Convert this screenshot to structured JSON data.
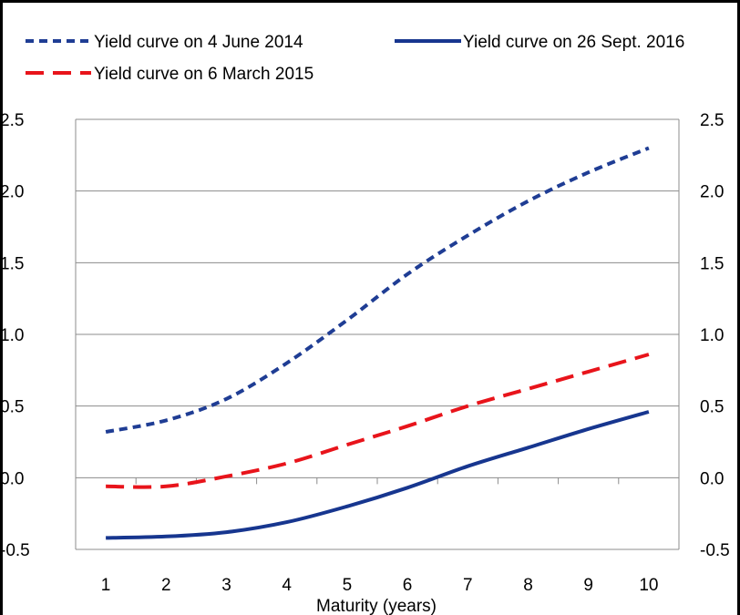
{
  "chart_data": {
    "type": "line",
    "title": "",
    "xlabel": "Maturity (years)",
    "ylabel": "",
    "x": [
      1,
      2,
      3,
      4,
      5,
      6,
      7,
      8,
      9,
      10
    ],
    "xlim": [
      0.5,
      10.5
    ],
    "ylim": [
      -0.5,
      2.5
    ],
    "y_ticks": [
      -0.5,
      0.0,
      0.5,
      1.0,
      1.5,
      2.0,
      2.5
    ],
    "y_tick_labels": [
      "-0.5",
      "0.0",
      "0.5",
      "1.0",
      "1.5",
      "2.0",
      "2.5"
    ],
    "x_tick_labels": [
      "1",
      "2",
      "3",
      "4",
      "5",
      "6",
      "7",
      "8",
      "9",
      "10"
    ],
    "grid": "horizontal",
    "legend_placement": "top",
    "series": [
      {
        "name": "Yield curve on 4 June 2014",
        "values": [
          0.32,
          0.4,
          0.55,
          0.8,
          1.1,
          1.42,
          1.69,
          1.93,
          2.13,
          2.3
        ],
        "color": "#1f3d94",
        "style": "short-dash"
      },
      {
        "name": "Yield curve on 26 Sept. 2016",
        "values": [
          -0.42,
          -0.41,
          -0.38,
          -0.31,
          -0.2,
          -0.07,
          0.08,
          0.21,
          0.34,
          0.46
        ],
        "color": "#17368f",
        "style": "solid"
      },
      {
        "name": "Yield curve on 6 March 2015",
        "values": [
          -0.06,
          -0.06,
          0.01,
          0.1,
          0.23,
          0.36,
          0.5,
          0.62,
          0.74,
          0.86
        ],
        "color": "#e8141b",
        "style": "long-dash"
      }
    ]
  }
}
